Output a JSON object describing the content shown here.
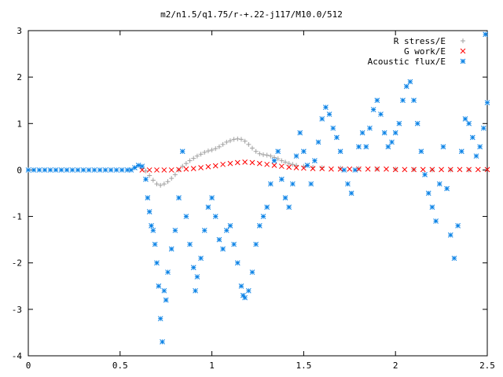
{
  "chart_data": {
    "type": "scatter",
    "title": "m2/n1.5/q1.75/r-+.22-j117/M10.0/512",
    "xlabel": "",
    "ylabel": "",
    "xlim": [
      0,
      2.5
    ],
    "ylim": [
      -4,
      3
    ],
    "x_ticks": [
      "0",
      "0.5",
      "1",
      "1.5",
      "2",
      "2.5"
    ],
    "y_ticks": [
      "-4",
      "-3",
      "-2",
      "-1",
      "0",
      "1",
      "2",
      "3"
    ],
    "grid": false,
    "legend_position": "top-right",
    "colors": {
      "r_stress": "#a0a0a0",
      "g_work": "#ff0000",
      "acoustic_flux": "#0a82e6",
      "axis": "#000000"
    },
    "series": [
      {
        "name": "R stress/E",
        "marker": "plus",
        "points": [
          [
            0.62,
            0.03
          ],
          [
            0.64,
            -0.02
          ],
          [
            0.66,
            -0.12
          ],
          [
            0.68,
            -0.22
          ],
          [
            0.7,
            -0.3
          ],
          [
            0.72,
            -0.33
          ],
          [
            0.74,
            -0.3
          ],
          [
            0.76,
            -0.25
          ],
          [
            0.78,
            -0.18
          ],
          [
            0.8,
            -0.1
          ],
          [
            0.82,
            0.0
          ],
          [
            0.84,
            0.08
          ],
          [
            0.86,
            0.14
          ],
          [
            0.88,
            0.2
          ],
          [
            0.9,
            0.25
          ],
          [
            0.92,
            0.3
          ],
          [
            0.94,
            0.34
          ],
          [
            0.96,
            0.38
          ],
          [
            0.98,
            0.41
          ],
          [
            1.0,
            0.43
          ],
          [
            1.02,
            0.46
          ],
          [
            1.04,
            0.5
          ],
          [
            1.06,
            0.55
          ],
          [
            1.08,
            0.6
          ],
          [
            1.1,
            0.63
          ],
          [
            1.12,
            0.66
          ],
          [
            1.14,
            0.67
          ],
          [
            1.16,
            0.66
          ],
          [
            1.18,
            0.62
          ],
          [
            1.2,
            0.55
          ],
          [
            1.22,
            0.47
          ],
          [
            1.24,
            0.4
          ],
          [
            1.26,
            0.35
          ],
          [
            1.28,
            0.33
          ],
          [
            1.3,
            0.32
          ],
          [
            1.32,
            0.3
          ],
          [
            1.34,
            0.27
          ],
          [
            1.36,
            0.24
          ],
          [
            1.38,
            0.2
          ],
          [
            1.4,
            0.17
          ],
          [
            1.42,
            0.14
          ],
          [
            1.44,
            0.12
          ],
          [
            1.46,
            0.1
          ],
          [
            1.5,
            0.08
          ],
          [
            1.55,
            0.06
          ],
          [
            1.6,
            0.05
          ],
          [
            1.7,
            0.04
          ],
          [
            1.8,
            0.03
          ],
          [
            1.9,
            0.02
          ],
          [
            2.0,
            0.02
          ],
          [
            2.1,
            0.01
          ],
          [
            2.2,
            0.0
          ],
          [
            2.3,
            0.0
          ],
          [
            2.4,
            0.0
          ]
        ]
      },
      {
        "name": "G work/E",
        "marker": "cross",
        "points": [
          [
            0.62,
            0.0
          ],
          [
            0.66,
            0.0
          ],
          [
            0.7,
            0.0
          ],
          [
            0.74,
            0.0
          ],
          [
            0.78,
            0.0
          ],
          [
            0.82,
            0.01
          ],
          [
            0.86,
            0.02
          ],
          [
            0.9,
            0.03
          ],
          [
            0.94,
            0.05
          ],
          [
            0.98,
            0.07
          ],
          [
            1.02,
            0.09
          ],
          [
            1.06,
            0.12
          ],
          [
            1.1,
            0.14
          ],
          [
            1.14,
            0.16
          ],
          [
            1.18,
            0.17
          ],
          [
            1.22,
            0.16
          ],
          [
            1.26,
            0.14
          ],
          [
            1.3,
            0.12
          ],
          [
            1.34,
            0.1
          ],
          [
            1.38,
            0.08
          ],
          [
            1.42,
            0.06
          ],
          [
            1.46,
            0.05
          ],
          [
            1.5,
            0.04
          ],
          [
            1.55,
            0.03
          ],
          [
            1.6,
            0.03
          ],
          [
            1.65,
            0.02
          ],
          [
            1.7,
            0.02
          ],
          [
            1.75,
            0.02
          ],
          [
            1.8,
            0.02
          ],
          [
            1.85,
            0.02
          ],
          [
            1.9,
            0.02
          ],
          [
            1.95,
            0.02
          ],
          [
            2.0,
            0.01
          ],
          [
            2.05,
            0.01
          ],
          [
            2.1,
            0.01
          ],
          [
            2.15,
            0.01
          ],
          [
            2.2,
            0.01
          ],
          [
            2.25,
            0.01
          ],
          [
            2.3,
            0.01
          ],
          [
            2.35,
            0.01
          ],
          [
            2.4,
            0.01
          ],
          [
            2.45,
            0.01
          ],
          [
            2.5,
            0.01
          ]
        ]
      },
      {
        "name": "Acoustic flux/E",
        "marker": "star",
        "points": [
          [
            0.0,
            0.0
          ],
          [
            0.03,
            0.0
          ],
          [
            0.06,
            0.0
          ],
          [
            0.09,
            0.0
          ],
          [
            0.12,
            0.0
          ],
          [
            0.15,
            0.0
          ],
          [
            0.18,
            0.0
          ],
          [
            0.21,
            0.0
          ],
          [
            0.24,
            0.0
          ],
          [
            0.27,
            0.0
          ],
          [
            0.3,
            0.0
          ],
          [
            0.33,
            0.0
          ],
          [
            0.36,
            0.0
          ],
          [
            0.39,
            0.0
          ],
          [
            0.42,
            0.0
          ],
          [
            0.45,
            0.0
          ],
          [
            0.48,
            0.0
          ],
          [
            0.51,
            0.0
          ],
          [
            0.54,
            0.0
          ],
          [
            0.56,
            0.0
          ],
          [
            0.58,
            0.05
          ],
          [
            0.6,
            0.1
          ],
          [
            0.62,
            0.08
          ],
          [
            0.64,
            -0.2
          ],
          [
            0.65,
            -0.6
          ],
          [
            0.66,
            -0.9
          ],
          [
            0.67,
            -1.2
          ],
          [
            0.68,
            -1.3
          ],
          [
            0.69,
            -1.6
          ],
          [
            0.7,
            -2.0
          ],
          [
            0.71,
            -2.5
          ],
          [
            0.72,
            -3.2
          ],
          [
            0.73,
            -3.7
          ],
          [
            0.74,
            -2.6
          ],
          [
            0.75,
            -2.8
          ],
          [
            0.76,
            -2.2
          ],
          [
            0.78,
            -1.7
          ],
          [
            0.8,
            -1.3
          ],
          [
            0.82,
            -0.6
          ],
          [
            0.84,
            0.4
          ],
          [
            0.86,
            -1.0
          ],
          [
            0.88,
            -1.6
          ],
          [
            0.9,
            -2.1
          ],
          [
            0.91,
            -2.6
          ],
          [
            0.92,
            -2.3
          ],
          [
            0.94,
            -1.9
          ],
          [
            0.96,
            -1.3
          ],
          [
            0.98,
            -0.8
          ],
          [
            1.0,
            -0.6
          ],
          [
            1.02,
            -1.0
          ],
          [
            1.04,
            -1.5
          ],
          [
            1.06,
            -1.7
          ],
          [
            1.08,
            -1.3
          ],
          [
            1.1,
            -1.2
          ],
          [
            1.12,
            -1.6
          ],
          [
            1.14,
            -2.0
          ],
          [
            1.16,
            -2.5
          ],
          [
            1.17,
            -2.7
          ],
          [
            1.18,
            -2.75
          ],
          [
            1.2,
            -2.6
          ],
          [
            1.22,
            -2.2
          ],
          [
            1.24,
            -1.6
          ],
          [
            1.26,
            -1.2
          ],
          [
            1.28,
            -1.0
          ],
          [
            1.3,
            -0.8
          ],
          [
            1.32,
            -0.3
          ],
          [
            1.34,
            0.2
          ],
          [
            1.36,
            0.4
          ],
          [
            1.38,
            -0.2
          ],
          [
            1.4,
            -0.6
          ],
          [
            1.42,
            -0.8
          ],
          [
            1.44,
            -0.3
          ],
          [
            1.46,
            0.3
          ],
          [
            1.48,
            0.8
          ],
          [
            1.5,
            0.4
          ],
          [
            1.52,
            0.1
          ],
          [
            1.54,
            -0.3
          ],
          [
            1.56,
            0.2
          ],
          [
            1.58,
            0.6
          ],
          [
            1.6,
            1.1
          ],
          [
            1.62,
            1.35
          ],
          [
            1.64,
            1.2
          ],
          [
            1.66,
            0.9
          ],
          [
            1.68,
            0.7
          ],
          [
            1.7,
            0.4
          ],
          [
            1.72,
            0.0
          ],
          [
            1.74,
            -0.3
          ],
          [
            1.76,
            -0.5
          ],
          [
            1.78,
            0.0
          ],
          [
            1.8,
            0.5
          ],
          [
            1.82,
            0.8
          ],
          [
            1.84,
            0.5
          ],
          [
            1.86,
            0.9
          ],
          [
            1.88,
            1.3
          ],
          [
            1.9,
            1.5
          ],
          [
            1.92,
            1.2
          ],
          [
            1.94,
            0.8
          ],
          [
            1.96,
            0.5
          ],
          [
            1.98,
            0.6
          ],
          [
            2.0,
            0.8
          ],
          [
            2.02,
            1.0
          ],
          [
            2.04,
            1.5
          ],
          [
            2.06,
            1.8
          ],
          [
            2.08,
            1.9
          ],
          [
            2.1,
            1.5
          ],
          [
            2.12,
            1.0
          ],
          [
            2.14,
            0.4
          ],
          [
            2.16,
            -0.1
          ],
          [
            2.18,
            -0.5
          ],
          [
            2.2,
            -0.8
          ],
          [
            2.22,
            -1.1
          ],
          [
            2.24,
            -0.3
          ],
          [
            2.26,
            0.5
          ],
          [
            2.28,
            -0.4
          ],
          [
            2.3,
            -1.4
          ],
          [
            2.32,
            -1.9
          ],
          [
            2.34,
            -1.2
          ],
          [
            2.36,
            0.4
          ],
          [
            2.38,
            1.1
          ],
          [
            2.4,
            1.0
          ],
          [
            2.42,
            0.7
          ],
          [
            2.44,
            0.3
          ],
          [
            2.46,
            0.5
          ],
          [
            2.48,
            0.9
          ],
          [
            2.5,
            1.45
          ],
          [
            2.49,
            2.92
          ]
        ]
      }
    ]
  }
}
